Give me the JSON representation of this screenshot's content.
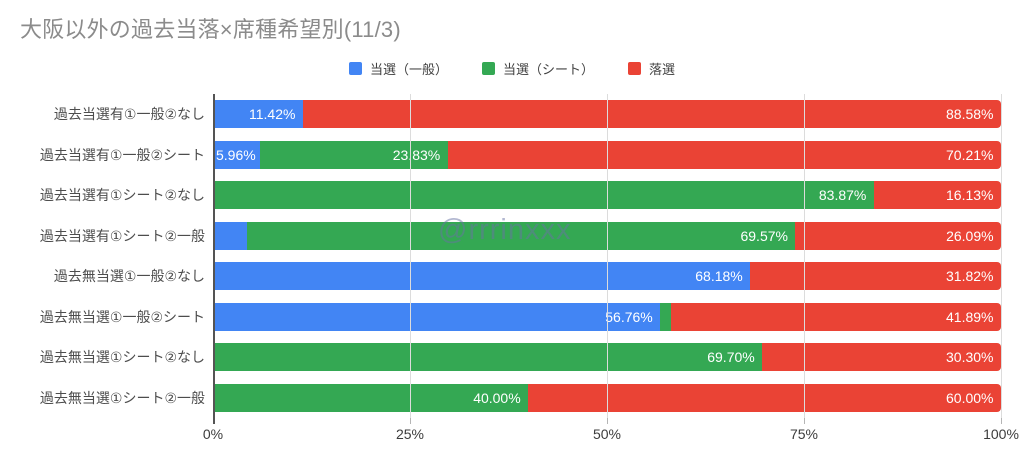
{
  "title": "大阪以外の過去当落×席種希望別(11/3)",
  "watermark": "@rrrinxxx",
  "legend": [
    {
      "label": "当選（一般）",
      "color": "#4285f4"
    },
    {
      "label": "当選（シート）",
      "color": "#34a853"
    },
    {
      "label": "落選",
      "color": "#ea4335"
    }
  ],
  "chart_data": {
    "type": "bar",
    "orientation": "horizontal",
    "stacked": true,
    "stack_total": 100,
    "title": "大阪以外の過去当落×席種希望別(11/3)",
    "categories": [
      "過去当選有①一般②なし",
      "過去当選有①一般②シート",
      "過去当選有①シート②なし",
      "過去当選有①シート②一般",
      "過去無当選①一般②なし",
      "過去無当選①一般②シート",
      "過去無当選①シート②なし",
      "過去無当選①シート②一般"
    ],
    "series": [
      {
        "name": "当選（一般）",
        "color": "#4285f4",
        "values": [
          11.42,
          5.96,
          0.0,
          4.35,
          68.18,
          56.76,
          0.0,
          0.0
        ]
      },
      {
        "name": "当選（シート）",
        "color": "#34a853",
        "values": [
          0.0,
          23.83,
          83.87,
          69.57,
          0.0,
          1.35,
          69.7,
          40.0
        ]
      },
      {
        "name": "落選",
        "color": "#ea4335",
        "values": [
          88.58,
          70.21,
          16.13,
          26.09,
          31.82,
          41.89,
          30.3,
          60.0
        ]
      }
    ],
    "x_ticks": [
      "0%",
      "25%",
      "50%",
      "75%",
      "100%"
    ],
    "x_tick_values": [
      0,
      25,
      50,
      75,
      100
    ],
    "xlim": [
      0,
      100
    ],
    "value_suffix": "%",
    "value_decimals": 2,
    "grid": true,
    "legend_position": "top"
  },
  "colors": {
    "grid": "#dcdcdc",
    "axis": "#545454",
    "bar_label": "#ffffff",
    "category_label": "#4d4d4d",
    "title": "#8b8b8b"
  }
}
